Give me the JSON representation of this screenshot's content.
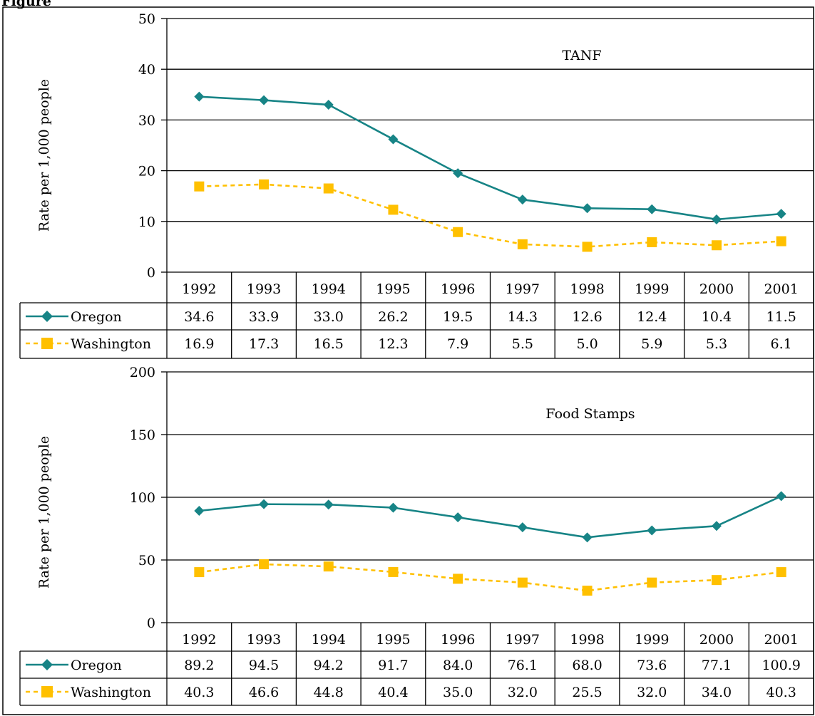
{
  "caption": "Figure",
  "colors": {
    "oregon": "#178486",
    "washington": "#FFC000",
    "grid": "#000000"
  },
  "chart_data": [
    {
      "type": "line",
      "title": "TANF",
      "ylabel": "Rate per 1,000 people",
      "ylim": [
        0,
        50
      ],
      "yticks": [
        "0",
        "10",
        "20",
        "30",
        "40",
        "50"
      ],
      "categories": [
        "1992",
        "1993",
        "1994",
        "1995",
        "1996",
        "1997",
        "1998",
        "1999",
        "2000",
        "2001"
      ],
      "series": [
        {
          "name": "Oregon",
          "marker": "diamond",
          "style": "solid",
          "values": [
            34.6,
            33.9,
            33.0,
            26.2,
            19.5,
            14.3,
            12.6,
            12.4,
            10.4,
            11.5
          ],
          "labels": [
            "34.6",
            "33.9",
            "33.0",
            "26.2",
            "19.5",
            "14.3",
            "12.6",
            "12.4",
            "10.4",
            "11.5"
          ]
        },
        {
          "name": "Washington",
          "marker": "square",
          "style": "dashed",
          "values": [
            16.9,
            17.3,
            16.5,
            12.3,
            7.9,
            5.5,
            5.0,
            5.9,
            5.3,
            6.1
          ],
          "labels": [
            "16.9",
            "17.3",
            "16.5",
            "12.3",
            "7.9",
            "5.5",
            "5.0",
            "5.9",
            "5.3",
            "6.1"
          ]
        }
      ],
      "grid": true,
      "legend": "data table"
    },
    {
      "type": "line",
      "title": "Food Stamps",
      "ylabel": "Rate per 1,000 people",
      "ylim": [
        0,
        200
      ],
      "yticks": [
        "0",
        "50",
        "100",
        "150",
        "200"
      ],
      "categories": [
        "1992",
        "1993",
        "1994",
        "1995",
        "1996",
        "1997",
        "1998",
        "1999",
        "2000",
        "2001"
      ],
      "series": [
        {
          "name": "Oregon",
          "marker": "diamond",
          "style": "solid",
          "values": [
            89.2,
            94.5,
            94.2,
            91.7,
            84.0,
            76.1,
            68.0,
            73.6,
            77.1,
            100.9
          ],
          "labels": [
            "89.2",
            "94.5",
            "94.2",
            "91.7",
            "84.0",
            "76.1",
            "68.0",
            "73.6",
            "77.1",
            "100.9"
          ]
        },
        {
          "name": "Washington",
          "marker": "square",
          "style": "dashed",
          "values": [
            40.3,
            46.6,
            44.8,
            40.4,
            35.0,
            32.0,
            25.5,
            32.0,
            34.0,
            40.3
          ],
          "labels": [
            "40.3",
            "46.6",
            "44.8",
            "40.4",
            "35.0",
            "32.0",
            "25.5",
            "32.0",
            "34.0",
            "40.3"
          ]
        }
      ],
      "grid": true,
      "legend": "data table"
    }
  ]
}
